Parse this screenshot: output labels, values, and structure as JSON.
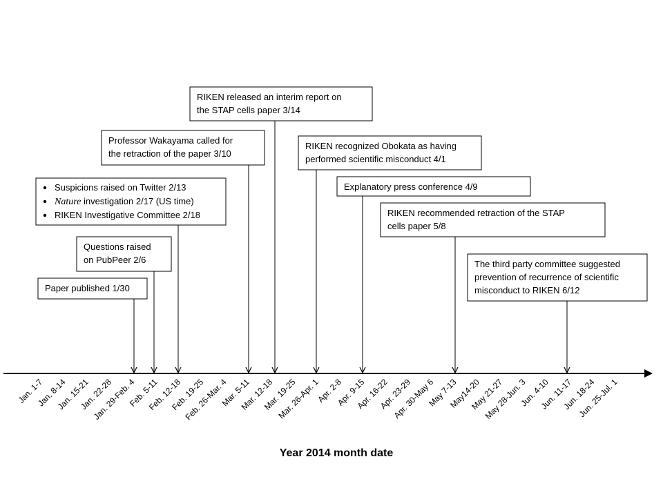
{
  "axis": {
    "title": "Year 2014 month date",
    "labels": [
      "Jan. 1-7",
      "Jan. 8-14",
      "Jan. 15-21",
      "Jan. 22-28",
      "Jan. 29-Feb. 4",
      "Feb. 5-11",
      "Feb. 12-18",
      "Feb. 19-25",
      "Feb. 26-Mar. 4",
      "Mar. 5-11",
      "Mar. 12-18",
      "Mar. 19-25",
      "Mar. 26-Apr. 1",
      "Apr. 2-8",
      "Apr. 9-15",
      "Apr. 16-22",
      "Apr. 23-29",
      "Apr. 30-May 6",
      "May 7-13",
      "May14-20",
      "May 21-27",
      "May 28-Jun. 3",
      "Jun. 4-10",
      "Jun. 11-17",
      "Jun. 18-24",
      "Jun. 25-Jul. 1"
    ]
  },
  "events": [
    {
      "lines": [
        "Paper published 1/30"
      ]
    },
    {
      "lines": [
        "Questions raised",
        "on PubPeer 2/6"
      ]
    },
    {
      "bullets": [
        "Suspicions raised on Twitter 2/13",
        {
          "emphasis": "Nature",
          "text": " investigation 2/17 (US time)"
        },
        "RIKEN Investigative Committee 2/18"
      ]
    },
    {
      "lines": [
        "Professor Wakayama called for",
        "the retraction of the paper 3/10"
      ]
    },
    {
      "lines": [
        "RIKEN released an interim report on",
        "the STAP cells paper 3/14"
      ]
    },
    {
      "lines": [
        "RIKEN recognized Obokata as having",
        "performed  scientific misconduct 4/1"
      ]
    },
    {
      "lines": [
        "Explanatory press conference  4/9"
      ]
    },
    {
      "lines": [
        "RIKEN recommended  retraction of the STAP",
        "cells paper 5/8"
      ]
    },
    {
      "lines": [
        "The third party committee suggested",
        "prevention of recurrence of scientific",
        "misconduct to RIKEN 6/12"
      ]
    }
  ]
}
